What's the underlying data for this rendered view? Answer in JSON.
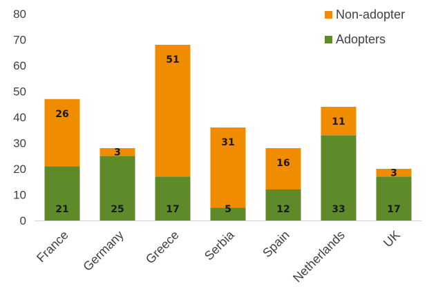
{
  "chart_data": {
    "type": "bar",
    "stacked": true,
    "categories": [
      "France",
      "Germany",
      "Greece",
      "Serbia",
      "Spain",
      "Netherlands",
      "UK"
    ],
    "series": [
      {
        "name": "Adopters",
        "values": [
          21,
          25,
          17,
          5,
          12,
          33,
          17
        ],
        "color": "#5f8a2a"
      },
      {
        "name": "Non-adopter",
        "values": [
          26,
          3,
          51,
          31,
          16,
          11,
          3
        ],
        "color": "#f08c00"
      }
    ],
    "ylim": [
      0,
      80
    ],
    "yticks": [
      "0",
      "10",
      "20",
      "30",
      "40",
      "50",
      "60",
      "70",
      "80"
    ],
    "grid": false,
    "legend_position": "top-right",
    "legend": [
      "Non-adopter",
      "Adopters"
    ],
    "title": "",
    "xlabel": "",
    "ylabel": ""
  }
}
